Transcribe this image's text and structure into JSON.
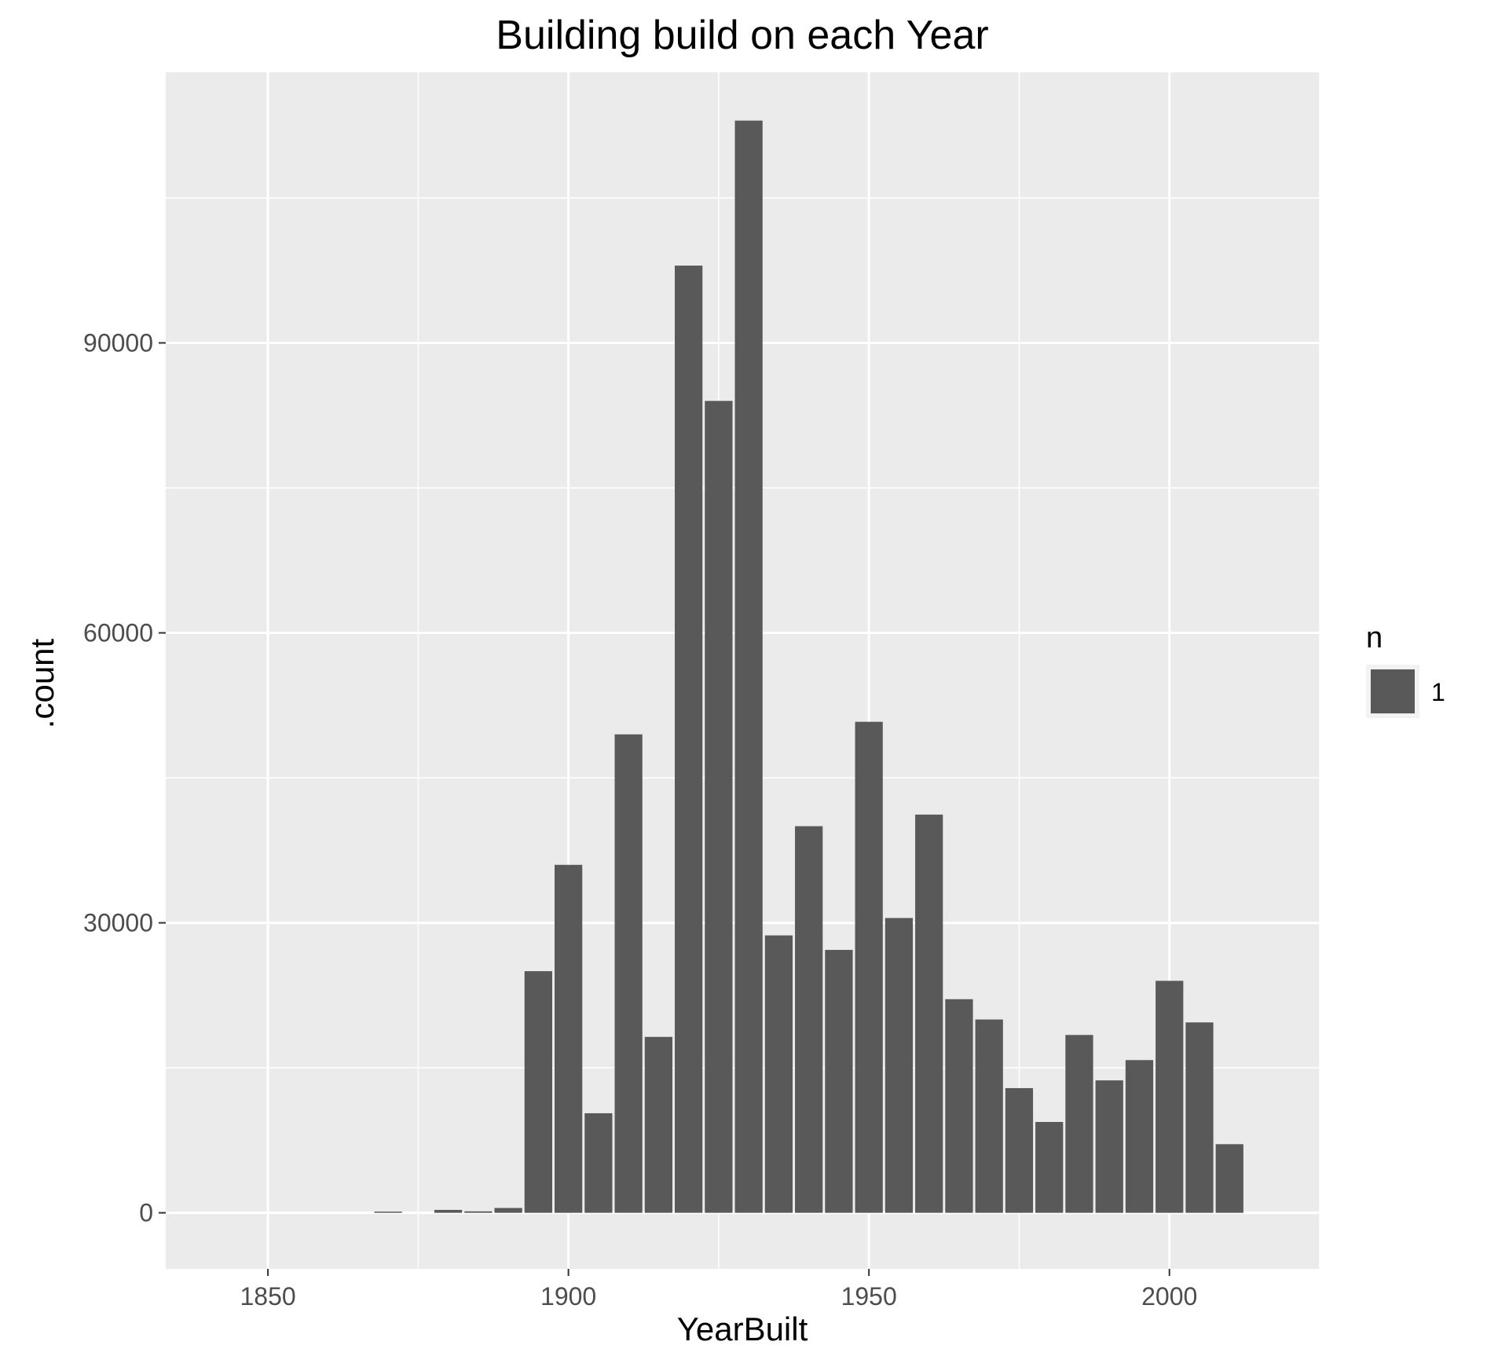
{
  "chart_data": {
    "type": "bar",
    "title": "Building build on each Year",
    "xlabel": "YearBuilt",
    "ylabel": ".count",
    "xlim": [
      1833,
      2025
    ],
    "ylim": [
      -5800,
      118000
    ],
    "x_ticks": [
      1850,
      1900,
      1950,
      2000
    ],
    "y_ticks": [
      0,
      30000,
      60000,
      90000
    ],
    "bin_width": 5,
    "grid": true,
    "colors": {
      "panel": "#ebebeb",
      "grid": "#ffffff",
      "bar": "#595959",
      "legend_key_bg": "#f2f2f2"
    },
    "legend": {
      "title": "n",
      "position": "right",
      "entries": [
        {
          "label": "1",
          "color": "#595959"
        }
      ]
    },
    "series": [
      {
        "name": "1",
        "x": [
          1870,
          1880,
          1885,
          1890,
          1895,
          1900,
          1905,
          1910,
          1915,
          1920,
          1925,
          1930,
          1935,
          1940,
          1945,
          1950,
          1955,
          1960,
          1965,
          1970,
          1975,
          1980,
          1985,
          1990,
          1995,
          2000,
          2005,
          2010
        ],
        "values": [
          100,
          300,
          150,
          500,
          25000,
          36000,
          10300,
          49500,
          18200,
          98000,
          84000,
          113000,
          28700,
          40000,
          27200,
          50800,
          30500,
          41200,
          22100,
          20000,
          12900,
          9400,
          18400,
          13700,
          15800,
          24000,
          19700,
          7100
        ]
      }
    ]
  }
}
